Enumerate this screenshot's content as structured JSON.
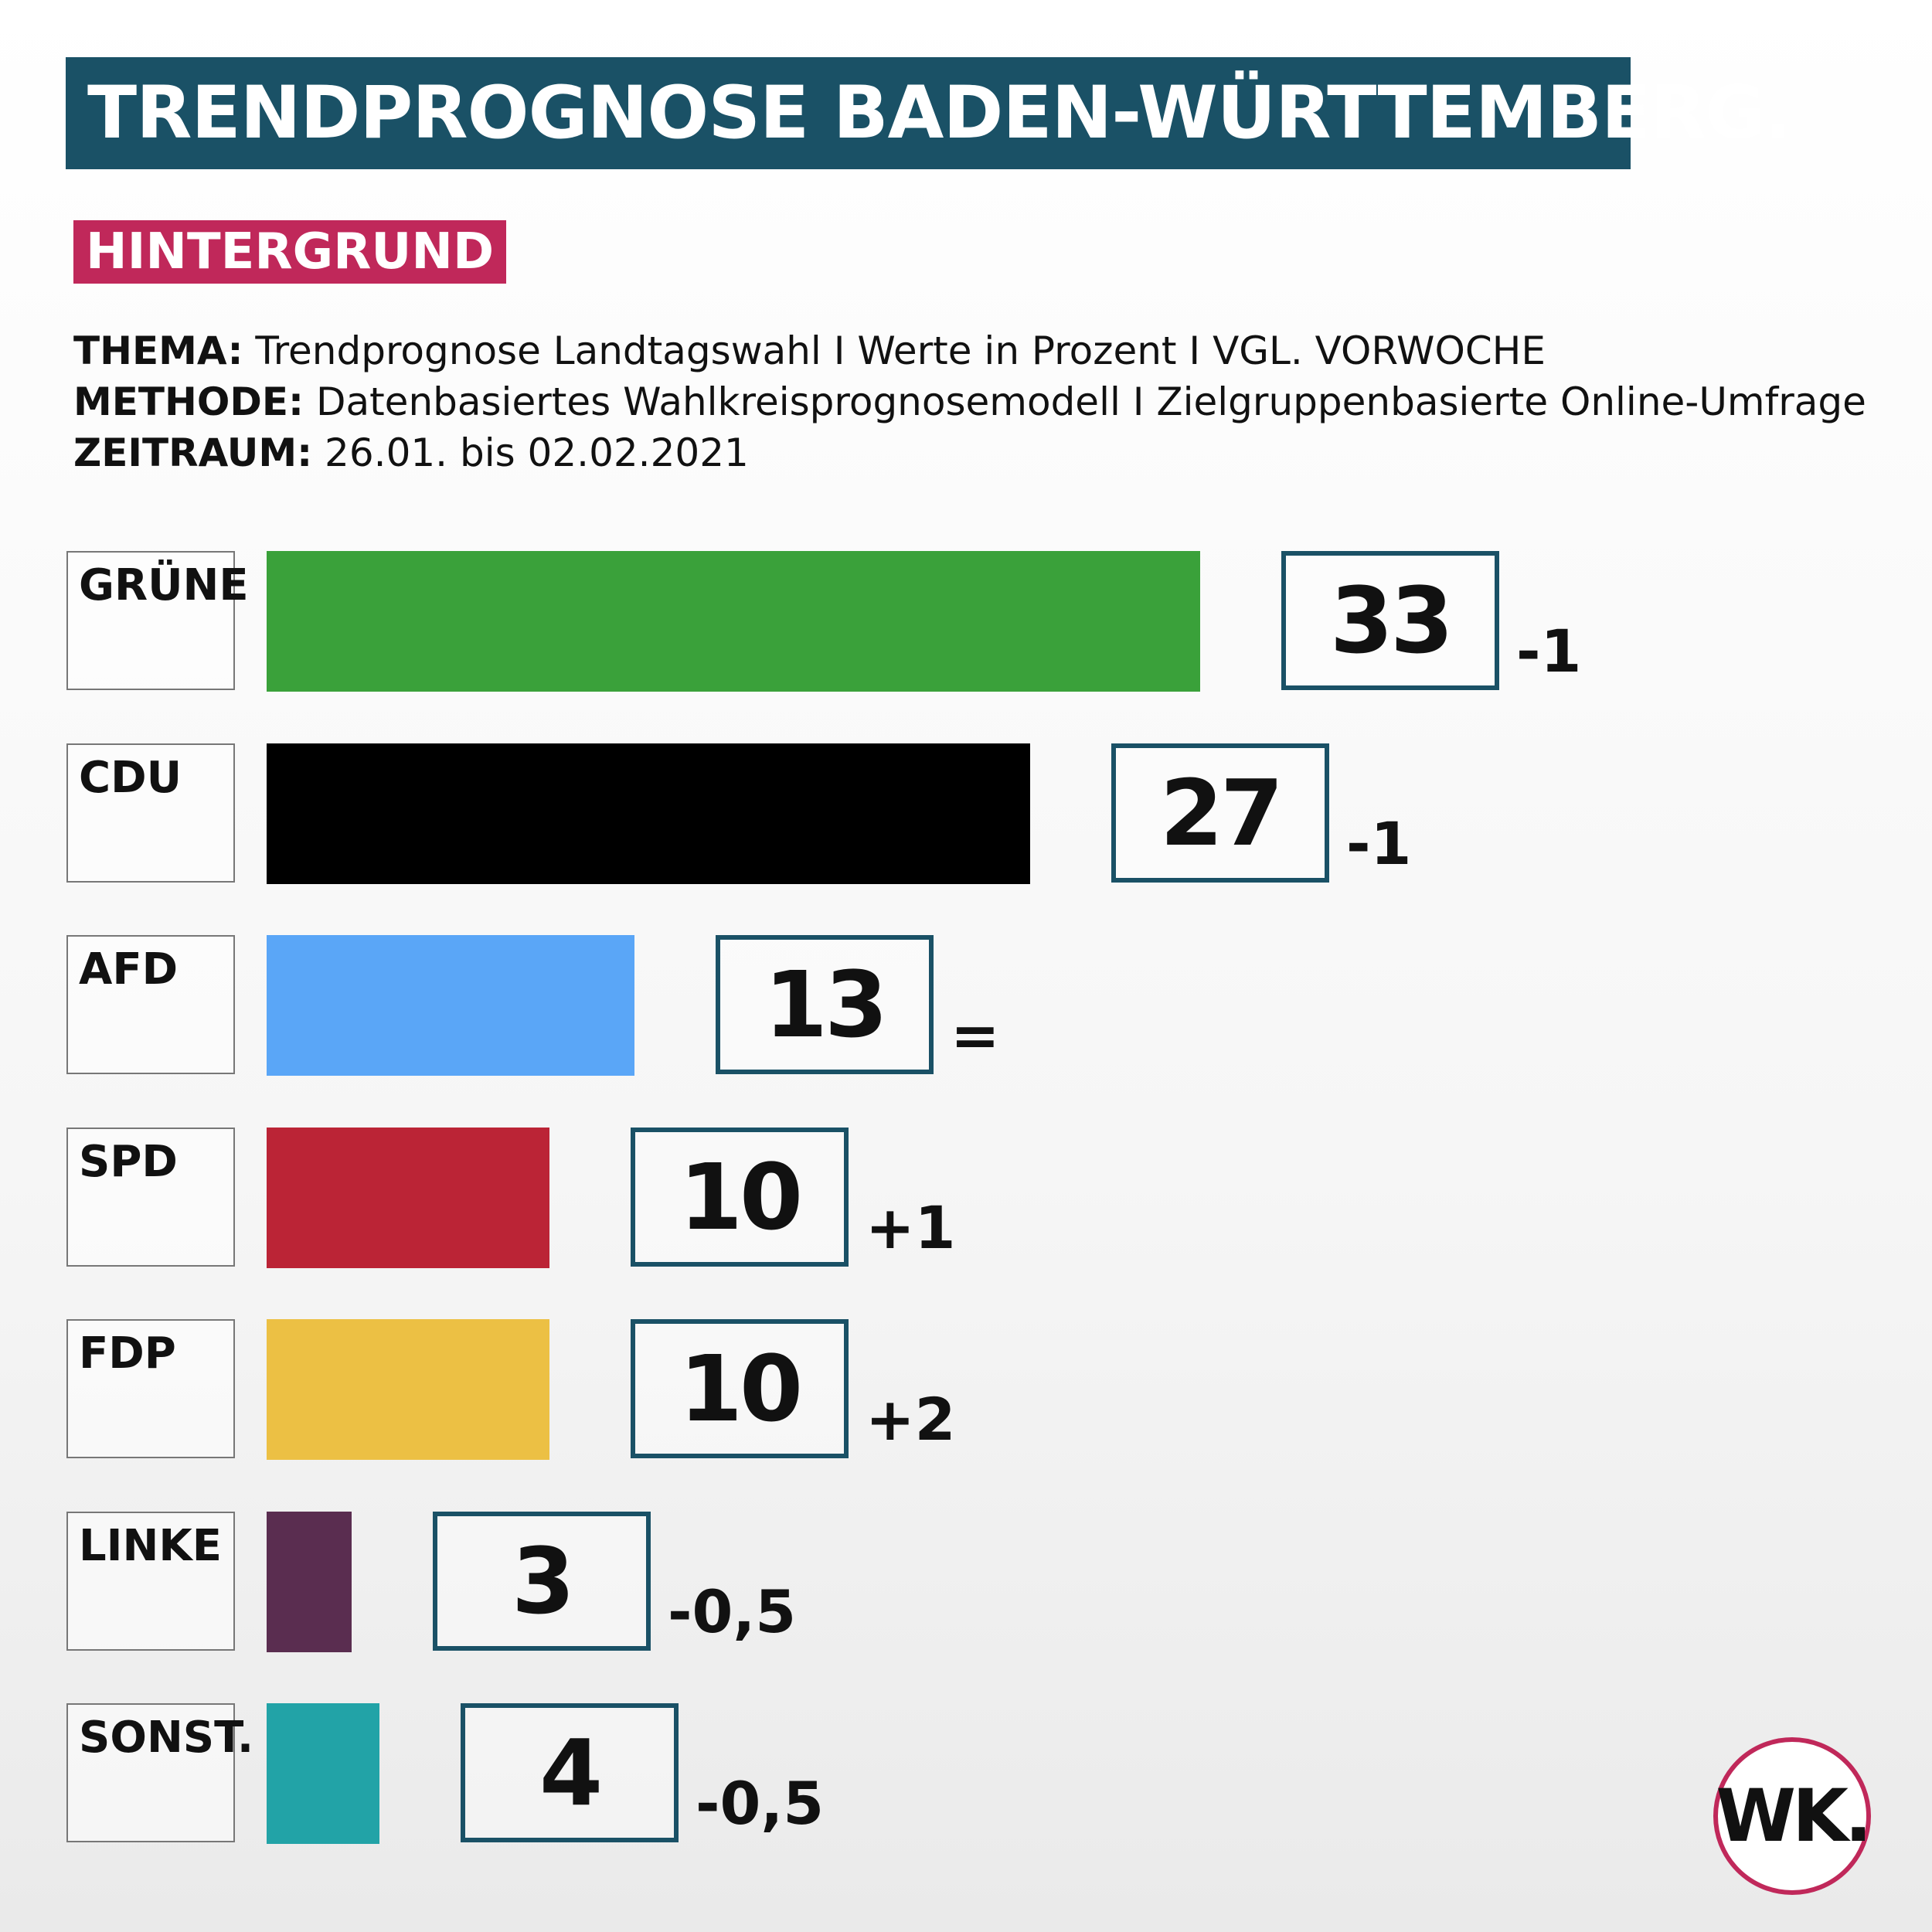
{
  "header": {
    "title": "TRENDPROGNOSE BADEN-WÜRTTEMBERG.",
    "badge": "HINTERGRUND"
  },
  "meta": [
    {
      "key": "THEMA:",
      "value": "Trendprognose Landtagswahl I Werte in Prozent I VGL. VORWOCHE"
    },
    {
      "key": "METHODE:",
      "value": "Datenbasiertes Wahlkreisprognosemodell I Zielgruppenbasierte Online-Umfrage"
    },
    {
      "key": "ZEITRAUM:",
      "value": "26.01. bis 02.02.2021"
    }
  ],
  "chart_data": {
    "type": "bar",
    "orientation": "horizontal",
    "title": "TRENDPROGNOSE BADEN-WÜRTTEMBERG.",
    "unit": "Prozent",
    "categories": [
      "GRÜNE",
      "CDU",
      "AFD",
      "SPD",
      "FDP",
      "LINKE",
      "SONST."
    ],
    "values": [
      33,
      27,
      13,
      10,
      10,
      3,
      4
    ],
    "value_labels": [
      "33",
      "27",
      "13",
      "10",
      "10",
      "3",
      "4"
    ],
    "changes": [
      "-1",
      "-1",
      "=",
      "+1",
      "+2",
      "-0,5",
      "-0,5"
    ],
    "colors": [
      "#3aa13a",
      "#000000",
      "#5aa6f7",
      "#bb2436",
      "#ecc044",
      "#5a2d50",
      "#22a3a7"
    ],
    "grid": false,
    "legend": "none"
  },
  "logo": "WK."
}
